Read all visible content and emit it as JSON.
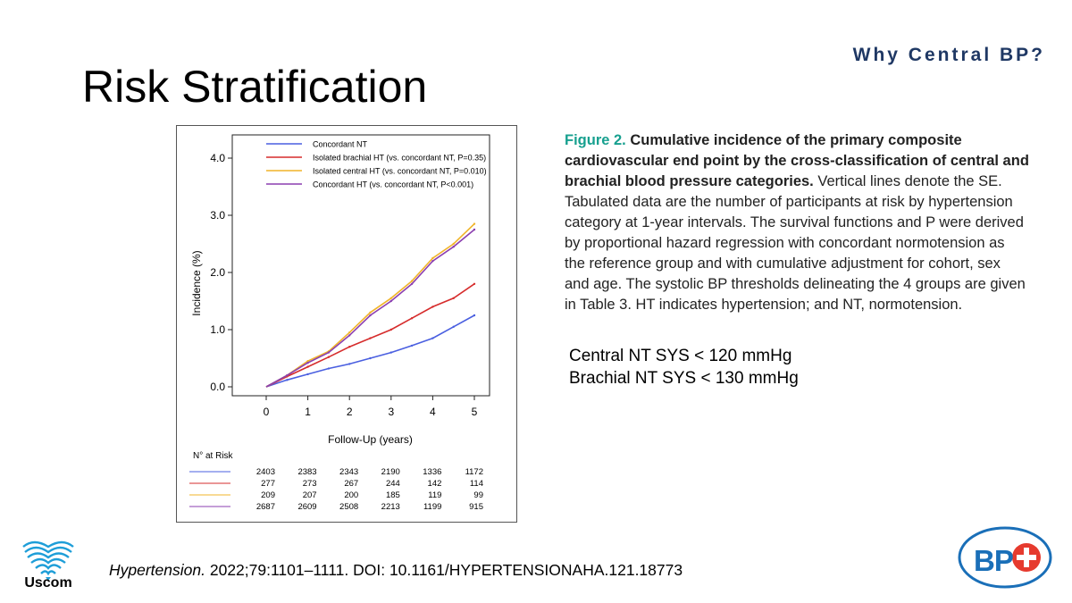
{
  "header": {
    "tagline": "Why Central BP?",
    "title": "Risk Stratification"
  },
  "chart_data": {
    "type": "line",
    "xlabel": "Follow-Up (years)",
    "ylabel": "Incidence (%)",
    "xlim": [
      0,
      5
    ],
    "ylim": [
      0,
      4.2
    ],
    "x_ticks": [
      "0",
      "1",
      "2",
      "3",
      "4",
      "5"
    ],
    "y_ticks": [
      "0.0",
      "1.0",
      "2.0",
      "3.0",
      "4.0"
    ],
    "legend_position": "top",
    "series": [
      {
        "name": "Concordant NT",
        "color": "#4a5fe0",
        "x": [
          0,
          0.5,
          1,
          1.5,
          2,
          2.5,
          3,
          3.5,
          4,
          4.5,
          5
        ],
        "y": [
          0,
          0.12,
          0.22,
          0.32,
          0.4,
          0.5,
          0.6,
          0.72,
          0.85,
          1.05,
          1.25
        ]
      },
      {
        "name": "Isolated brachial HT (vs. concordant NT, P=0.35)",
        "color": "#d62c2c",
        "x": [
          0,
          0.5,
          1,
          1.5,
          2,
          2.5,
          3,
          3.5,
          4,
          4.5,
          5
        ],
        "y": [
          0,
          0.18,
          0.35,
          0.52,
          0.7,
          0.85,
          1.0,
          1.2,
          1.4,
          1.55,
          1.8
        ]
      },
      {
        "name": "Isolated central HT (vs. concordant NT, P=0.010)",
        "color": "#f0b429",
        "x": [
          0,
          0.5,
          1,
          1.5,
          2,
          2.5,
          3,
          3.5,
          4,
          4.5,
          5
        ],
        "y": [
          0,
          0.2,
          0.45,
          0.62,
          0.95,
          1.3,
          1.55,
          1.85,
          2.25,
          2.5,
          2.85
        ]
      },
      {
        "name": "Concordant HT (vs. concordant NT, P<0.001)",
        "color": "#8b3fb0",
        "x": [
          0,
          0.5,
          1,
          1.5,
          2,
          2.5,
          3,
          3.5,
          4,
          4.5,
          5
        ],
        "y": [
          0,
          0.2,
          0.42,
          0.6,
          0.9,
          1.25,
          1.5,
          1.8,
          2.2,
          2.45,
          2.75
        ]
      }
    ],
    "at_risk": {
      "label": "N° at Risk",
      "rows": [
        {
          "color": "#4a5fe0",
          "values": [
            "2403",
            "2383",
            "2343",
            "2190",
            "1336",
            "1172"
          ]
        },
        {
          "color": "#d62c2c",
          "values": [
            "277",
            "273",
            "267",
            "244",
            "142",
            "114"
          ]
        },
        {
          "color": "#f0b429",
          "values": [
            "209",
            "207",
            "200",
            "185",
            "119",
            "99"
          ]
        },
        {
          "color": "#8b3fb0",
          "values": [
            "2687",
            "2609",
            "2508",
            "2213",
            "1199",
            "915"
          ]
        }
      ]
    }
  },
  "caption": {
    "number": "Figure 2.",
    "heading": "Cumulative incidence of the primary composite cardiovascular end point by the cross-classification of central and brachial blood pressure categories.",
    "body": "Vertical lines denote the SE. Tabulated data are the number of participants at risk by hypertension category at 1-year intervals. The survival functions and P were derived by proportional hazard regression with concordant normotension as the reference group and with cumulative adjustment for cohort, sex and age. The systolic BP thresholds delineating the 4 groups are given in Table 3. HT indicates hypertension; and NT, normotension."
  },
  "thresholds": {
    "central": "Central NT SYS < 120 mmHg",
    "brachial": "Brachial NT SYS < 130 mmHg"
  },
  "citation": {
    "journal": "Hypertension.",
    "ref": "2022;79:1101–1111. DOI: 10.1161/HYPERTENSIONAHA.121.18773"
  },
  "logos": {
    "uscom": "Uscom",
    "bp": "BP",
    "brand_color": "#1a6fb8",
    "cross_color": "#e63a2e"
  }
}
